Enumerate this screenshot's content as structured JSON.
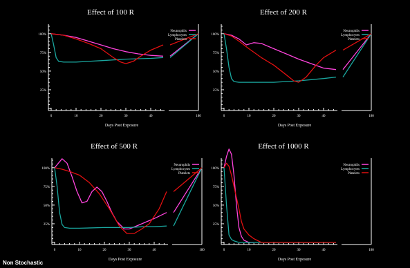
{
  "footer_label": "Non Stochastic",
  "colors": {
    "Neutrophils": "#ff44dd",
    "Lymphocytes": "#1aa8a0",
    "Platelets": "#e01010"
  },
  "chart_data": [
    {
      "type": "line",
      "title": "Effect of 100 R",
      "xlabel": "Days Post Exposure",
      "ylabel": "",
      "x_ticks": [
        "0",
        "10",
        "20",
        "30",
        "40",
        "180"
      ],
      "y_ticks": [
        "100%",
        "75%",
        "50%",
        "25%"
      ],
      "xlim_main": [
        0,
        45
      ],
      "xlim_tail": [
        45,
        180
      ],
      "ylim": [
        0,
        110
      ],
      "legend": [
        "Neutrophils",
        "Lymphocytes",
        "Platelets"
      ],
      "series": [
        {
          "name": "Neutrophils",
          "x": [
            0,
            5,
            10,
            15,
            20,
            25,
            30,
            35,
            40,
            45,
            180
          ],
          "y": [
            100,
            98,
            95,
            90,
            85,
            80,
            76,
            73,
            71,
            70,
            100
          ]
        },
        {
          "name": "Lymphocytes",
          "x": [
            0,
            1,
            2,
            3,
            5,
            10,
            20,
            30,
            40,
            45,
            180
          ],
          "y": [
            100,
            85,
            68,
            63,
            62,
            62,
            64,
            66,
            67,
            68,
            100
          ]
        },
        {
          "name": "Platelets",
          "x": [
            0,
            5,
            10,
            15,
            20,
            25,
            28,
            30,
            33,
            36,
            40,
            45,
            180
          ],
          "y": [
            100,
            98,
            93,
            87,
            80,
            68,
            62,
            60,
            63,
            70,
            78,
            85,
            100
          ]
        }
      ]
    },
    {
      "type": "line",
      "title": "Effect of 200 R",
      "xlabel": "Days Post Exposure",
      "ylabel": "",
      "x_ticks": [
        "0",
        "10",
        "20",
        "30",
        "40",
        "180"
      ],
      "y_ticks": [
        "100%",
        "75%",
        "50%",
        "25%"
      ],
      "xlim_main": [
        0,
        45
      ],
      "xlim_tail": [
        45,
        180
      ],
      "ylim": [
        0,
        110
      ],
      "legend": [
        "Neutrophils",
        "Lymphocytes",
        "Platelets"
      ],
      "series": [
        {
          "name": "Neutrophils",
          "x": [
            0,
            3,
            6,
            9,
            12,
            15,
            20,
            25,
            30,
            35,
            40,
            45,
            180
          ],
          "y": [
            100,
            98,
            93,
            85,
            88,
            87,
            80,
            73,
            66,
            60,
            54,
            52,
            100
          ]
        },
        {
          "name": "Lymphocytes",
          "x": [
            0,
            1,
            2,
            3,
            4,
            6,
            10,
            20,
            30,
            40,
            45,
            180
          ],
          "y": [
            100,
            80,
            55,
            40,
            36,
            35,
            35,
            35,
            37,
            40,
            42,
            100
          ]
        },
        {
          "name": "Platelets",
          "x": [
            0,
            3,
            6,
            10,
            15,
            20,
            25,
            28,
            30,
            33,
            37,
            40,
            45,
            180
          ],
          "y": [
            100,
            97,
            90,
            80,
            68,
            58,
            45,
            37,
            35,
            42,
            58,
            68,
            78,
            100
          ]
        }
      ]
    },
    {
      "type": "line",
      "title": "Effect of 500 R",
      "xlabel": "Days Post Exposure",
      "ylabel": "",
      "x_ticks": [
        "0",
        "10",
        "20",
        "30",
        "40",
        "180"
      ],
      "y_ticks": [
        "100%",
        "75%",
        "50%",
        "25%"
      ],
      "xlim_main": [
        0,
        45
      ],
      "xlim_tail": [
        45,
        180
      ],
      "ylim": [
        0,
        110
      ],
      "legend": [
        "Neutrophils",
        "Lymphocytes",
        "Platelets"
      ],
      "series": [
        {
          "name": "Neutrophils",
          "x": [
            0,
            2,
            3,
            5,
            7,
            9,
            11,
            13,
            15,
            17,
            19,
            21,
            23,
            25,
            28,
            30,
            35,
            40,
            45,
            180
          ],
          "y": [
            100,
            108,
            112,
            106,
            88,
            68,
            53,
            55,
            68,
            74,
            68,
            55,
            40,
            28,
            18,
            18,
            25,
            32,
            40,
            100
          ]
        },
        {
          "name": "Lymphocytes",
          "x": [
            0,
            1,
            2,
            3,
            4,
            6,
            10,
            20,
            25,
            30,
            35,
            40,
            45,
            180
          ],
          "y": [
            100,
            75,
            40,
            24,
            20,
            19,
            19,
            20,
            20,
            20,
            21,
            21,
            22,
            100
          ]
        },
        {
          "name": "Platelets",
          "x": [
            0,
            3,
            6,
            10,
            14,
            18,
            22,
            26,
            29,
            32,
            35,
            38,
            42,
            45,
            180
          ],
          "y": [
            100,
            98,
            95,
            90,
            80,
            65,
            45,
            22,
            12,
            12,
            18,
            25,
            45,
            68,
            100
          ]
        }
      ]
    },
    {
      "type": "line",
      "title": "Effect of 1000 R",
      "xlabel": "Days Post Exposure",
      "ylabel": "",
      "x_ticks": [
        "0",
        "10",
        "20",
        "30",
        "40",
        "180"
      ],
      "y_ticks": [
        "100%",
        "75%",
        "50%",
        "25%"
      ],
      "xlim_main": [
        0,
        45
      ],
      "xlim_tail": [
        45,
        180
      ],
      "ylim": [
        0,
        110
      ],
      "legend": [
        "Neutrophils",
        "Lymphocytes",
        "Platelets"
      ],
      "series": [
        {
          "name": "Neutrophils",
          "x": [
            0,
            1,
            2,
            3,
            4,
            5,
            6,
            7,
            8,
            10,
            12
          ],
          "y": [
            100,
            115,
            125,
            118,
            90,
            50,
            20,
            8,
            3,
            0,
            0
          ]
        },
        {
          "name": "Lymphocytes",
          "x": [
            0,
            1,
            2,
            3,
            4,
            6,
            45
          ],
          "y": [
            100,
            50,
            10,
            4,
            2,
            0,
            0
          ]
        },
        {
          "name": "Platelets",
          "x": [
            0,
            1,
            2,
            3,
            4,
            5,
            6,
            7,
            8,
            10,
            12,
            15,
            45
          ],
          "y": [
            100,
            106,
            102,
            90,
            75,
            60,
            45,
            28,
            18,
            10,
            5,
            0,
            0
          ]
        }
      ]
    }
  ]
}
